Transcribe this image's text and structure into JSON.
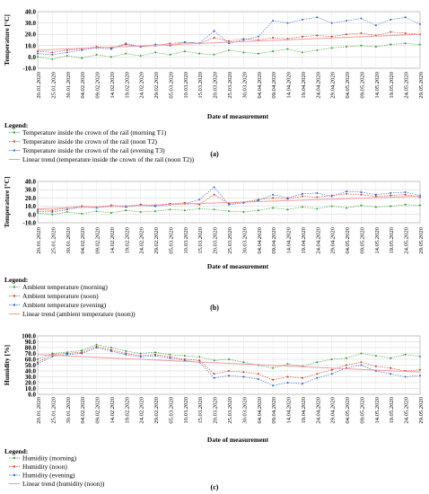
{
  "figure": {
    "panel_labels": [
      "(a)",
      "(b)",
      "(c)"
    ]
  },
  "chart_data": [
    {
      "type": "line",
      "panel": "(a)",
      "ylabel": "Temperature [°C]",
      "xlabel": "Date of measurement",
      "ylim": [
        -10,
        40
      ],
      "yticks": [
        "-10.0",
        "0.0",
        "10.0",
        "20.0",
        "30.0",
        "40.0"
      ],
      "grid": true,
      "legend_placement": "below",
      "legend_title": "Legend:",
      "x_tick_labels": [
        "20.01.2020",
        "25.01.2020",
        "30.01.2020",
        "04.02.2020",
        "09.02.2020",
        "14.02.2020",
        "19.02.2020",
        "24.02.2020",
        "29.02.2020",
        "05.03.2020",
        "10.03.2020",
        "15.03.2020",
        "20.03.2020",
        "25.03.2020",
        "30.03.2020",
        "04.04.2020",
        "09.04.2020",
        "14.04.2020",
        "19.04.2020",
        "24.04.2020",
        "29.04.2020",
        "04.05.2020",
        "09.05.2020",
        "14.05.2020",
        "19.05.2020",
        "24.05.2020",
        "29.05.2020"
      ],
      "series": [
        {
          "name": "Temperature inside the crown of the rail (morning T1)",
          "color": "#2e9e2e",
          "values": [
            0,
            -2,
            1,
            -1,
            2,
            0,
            3,
            1,
            4,
            2,
            5,
            3,
            2,
            6,
            4,
            3,
            5,
            7,
            4,
            6,
            8,
            9,
            10,
            9,
            11,
            12,
            11
          ]
        },
        {
          "name": "Temperature inside the crown of the rail (noon T2)",
          "color": "#cc3a1a",
          "values": [
            5,
            4,
            6,
            7,
            9,
            8,
            11,
            9,
            10,
            12,
            13,
            12,
            17,
            14,
            16,
            15,
            17,
            16,
            18,
            19,
            18,
            20,
            21,
            19,
            22,
            21,
            20
          ]
        },
        {
          "name": "Temperature inside the crown of the rail (evening T3)",
          "color": "#2f5fcf",
          "values": [
            3,
            2,
            4,
            6,
            8,
            7,
            12,
            9,
            11,
            10,
            13,
            12,
            23,
            12,
            15,
            18,
            32,
            30,
            33,
            35,
            30,
            32,
            34,
            28,
            33,
            35,
            29
          ]
        },
        {
          "name": "Linear trend (temperature inside the crown of the rail (noon T2))",
          "color": "#f09aa0",
          "trend": true,
          "values": [
            6,
            20
          ]
        }
      ]
    },
    {
      "type": "line",
      "panel": "(b)",
      "ylabel": "Temperature [°C]",
      "xlabel": "Date of measurement",
      "ylim": [
        -10,
        40
      ],
      "yticks": [
        "-10.0",
        "0.0",
        "10.0",
        "20.0",
        "30.0",
        "40.0"
      ],
      "grid": true,
      "legend_placement": "below",
      "legend_title": "Legend:",
      "x_tick_labels": [
        "20.01.2020",
        "25.01.2020",
        "30.01.2020",
        "04.02.2020",
        "09.02.2020",
        "14.02.2020",
        "19.02.2020",
        "24.02.2020",
        "29.02.2020",
        "05.03.2020",
        "10.03.2020",
        "15.03.2020",
        "20.03.2020",
        "25.03.2020",
        "30.03.2020",
        "04.04.2020",
        "09.04.2020",
        "14.04.2020",
        "19.04.2020",
        "24.04.2020",
        "29.04.2020",
        "04.05.2020",
        "09.05.2020",
        "14.05.2020",
        "19.05.2020",
        "24.05.2020",
        "29.05.2020"
      ],
      "series": [
        {
          "name": "Ambient temperature (morning)",
          "color": "#2e9e2e",
          "values": [
            2,
            0,
            3,
            1,
            4,
            2,
            5,
            3,
            4,
            6,
            5,
            7,
            6,
            4,
            3,
            5,
            8,
            6,
            9,
            7,
            10,
            8,
            11,
            9,
            10,
            12,
            11
          ]
        },
        {
          "name": "Ambient temperature (noon)",
          "color": "#cc3a1a",
          "values": [
            6,
            5,
            8,
            10,
            9,
            11,
            10,
            12,
            11,
            13,
            14,
            12,
            24,
            13,
            15,
            18,
            20,
            19,
            22,
            21,
            23,
            25,
            24,
            22,
            23,
            24,
            21
          ]
        },
        {
          "name": "Ambient temperature (evening)",
          "color": "#2f5fcf",
          "values": [
            4,
            3,
            6,
            9,
            8,
            10,
            9,
            11,
            10,
            12,
            13,
            18,
            33,
            12,
            14,
            17,
            24,
            20,
            25,
            26,
            22,
            28,
            27,
            24,
            26,
            27,
            23
          ]
        },
        {
          "name": "Linear trend (ambient temperature (noon))",
          "color": "#f09aa0",
          "trend": true,
          "values": [
            7,
            22
          ]
        }
      ]
    },
    {
      "type": "line",
      "panel": "(c)",
      "ylabel": "Humidity [%]",
      "xlabel": "Date of measurement",
      "ylim": [
        0,
        100
      ],
      "yticks": [
        "0.0",
        "10.0",
        "20.0",
        "30.0",
        "40.0",
        "50.0",
        "60.0",
        "70.0",
        "80.0",
        "90.0",
        "100.0"
      ],
      "grid": true,
      "legend_placement": "below",
      "legend_title": "Legend:",
      "x_tick_labels": [
        "20.01.2020",
        "25.01.2020",
        "30.01.2020",
        "04.02.2020",
        "09.02.2020",
        "14.02.2020",
        "19.02.2020",
        "24.02.2020",
        "29.02.2020",
        "05.03.2020",
        "10.03.2020",
        "15.03.2020",
        "20.03.2020",
        "25.03.2020",
        "30.03.2020",
        "04.04.2020",
        "09.04.2020",
        "14.04.2020",
        "19.04.2020",
        "24.04.2020",
        "29.04.2020",
        "04.05.2020",
        "09.05.2020",
        "14.05.2020",
        "19.05.2020",
        "24.05.2020",
        "29.05.2020"
      ],
      "series": [
        {
          "name": "Humidity (morning)",
          "color": "#2e9e2e",
          "values": [
            60,
            70,
            72,
            75,
            85,
            80,
            74,
            70,
            72,
            68,
            66,
            64,
            58,
            60,
            55,
            50,
            45,
            52,
            48,
            55,
            60,
            62,
            70,
            66,
            62,
            68,
            65
          ]
        },
        {
          "name": "Humidity (noon)",
          "color": "#cc3a1a",
          "values": [
            55,
            68,
            70,
            72,
            82,
            76,
            70,
            66,
            68,
            64,
            60,
            58,
            35,
            40,
            38,
            35,
            25,
            30,
            28,
            35,
            42,
            50,
            55,
            48,
            45,
            40,
            42
          ]
        },
        {
          "name": "Humidity (evening)",
          "color": "#2f5fcf",
          "values": [
            52,
            65,
            68,
            70,
            80,
            74,
            68,
            64,
            66,
            62,
            58,
            55,
            28,
            32,
            30,
            26,
            15,
            20,
            18,
            28,
            35,
            45,
            50,
            40,
            35,
            30,
            32
          ]
        },
        {
          "name": "Linear trend (humidity (noon))",
          "color": "#f09aa0",
          "trend": true,
          "values": [
            68,
            38
          ]
        }
      ]
    }
  ]
}
